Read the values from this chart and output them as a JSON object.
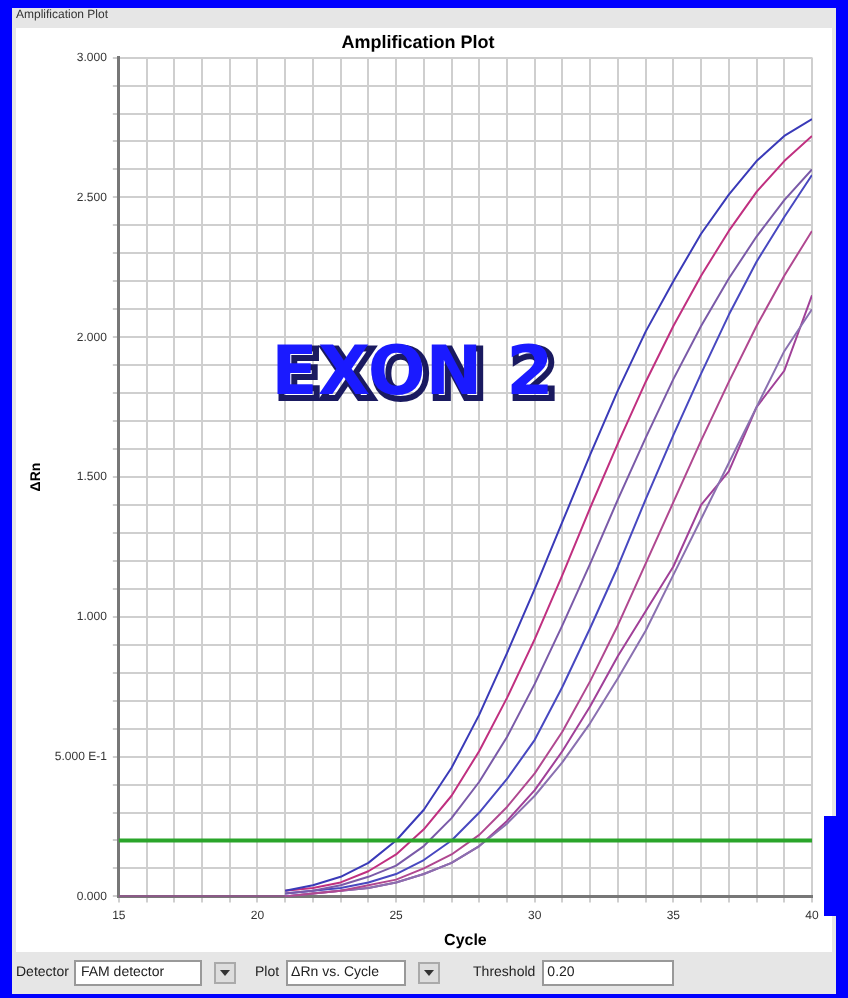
{
  "chart_data": {
    "type": "line",
    "title": "Amplification Plot",
    "xlabel": "Cycle",
    "ylabel": "ΔRn",
    "annotations": [
      "EXON 2",
      "Amplification Plot",
      "Detector",
      "FAM detector",
      "Plot",
      "ΔRn vs. Cycle",
      "Threshold",
      "0.20"
    ],
    "x": [
      15,
      16,
      17,
      18,
      19,
      20,
      21,
      22,
      23,
      24,
      25,
      26,
      27,
      28,
      29,
      30,
      31,
      32,
      33,
      34,
      35,
      36,
      37,
      38,
      39,
      40
    ],
    "series": [
      {
        "color": "#3a3ab8",
        "values": [
          null,
          null,
          null,
          null,
          null,
          null,
          0.02,
          0.04,
          0.07,
          0.12,
          0.2,
          0.31,
          0.46,
          0.65,
          0.87,
          1.1,
          1.34,
          1.58,
          1.81,
          2.02,
          2.2,
          2.37,
          2.51,
          2.63,
          2.72,
          2.78
        ]
      },
      {
        "color": "#c03080",
        "values": [
          null,
          null,
          null,
          null,
          null,
          null,
          0.02,
          0.03,
          0.05,
          0.09,
          0.15,
          0.24,
          0.36,
          0.52,
          0.71,
          0.92,
          1.15,
          1.39,
          1.62,
          1.84,
          2.04,
          2.22,
          2.38,
          2.52,
          2.63,
          2.72
        ]
      },
      {
        "color": "#7a5aa8",
        "values": [
          null,
          null,
          null,
          null,
          null,
          null,
          0.01,
          0.02,
          0.04,
          0.07,
          0.11,
          0.18,
          0.28,
          0.41,
          0.57,
          0.76,
          0.97,
          1.19,
          1.42,
          1.64,
          1.85,
          2.04,
          2.21,
          2.36,
          2.49,
          2.6
        ]
      },
      {
        "color": "#4848c0",
        "values": [
          null,
          null,
          null,
          null,
          null,
          null,
          0.01,
          0.02,
          0.03,
          0.05,
          0.08,
          0.13,
          0.2,
          0.3,
          0.42,
          0.56,
          0.75,
          0.96,
          1.18,
          1.42,
          1.65,
          1.87,
          2.08,
          2.27,
          2.43,
          2.58
        ]
      },
      {
        "color": "#b04890",
        "values": [
          null,
          null,
          null,
          null,
          null,
          null,
          0,
          0.01,
          0.02,
          0.04,
          0.06,
          0.1,
          0.15,
          0.22,
          0.32,
          0.44,
          0.59,
          0.77,
          0.97,
          1.19,
          1.41,
          1.63,
          1.84,
          2.04,
          2.22,
          2.38
        ]
      },
      {
        "color": "#8a70b0",
        "values": [
          null,
          null,
          null,
          null,
          null,
          null,
          0,
          0.01,
          0.02,
          0.03,
          0.05,
          0.08,
          0.12,
          0.18,
          0.26,
          0.36,
          0.48,
          0.62,
          0.78,
          0.95,
          1.15,
          1.35,
          1.55,
          1.75,
          1.95,
          2.1
        ]
      },
      {
        "color": "#a04098",
        "values": [
          0,
          0,
          0,
          0,
          0,
          0,
          0,
          0.01,
          0.02,
          0.03,
          0.05,
          0.08,
          0.12,
          0.18,
          0.27,
          0.38,
          0.52,
          0.68,
          0.86,
          1.02,
          1.18,
          1.4,
          1.52,
          1.75,
          1.88,
          2.15
        ]
      }
    ],
    "xlim": [
      15,
      40
    ],
    "xticks": [
      15,
      {
        "value": 16,
        "label": null
      },
      {
        "value": 17,
        "label": null
      },
      {
        "value": 18,
        "label": null
      },
      {
        "value": 19,
        "label": null
      },
      20,
      {
        "value": 21,
        "label": null
      },
      {
        "value": 22,
        "label": null
      },
      {
        "value": 23,
        "label": null
      },
      {
        "value": 24,
        "label": null
      },
      25,
      {
        "value": 26,
        "label": null
      },
      {
        "value": 27,
        "label": null
      },
      {
        "value": 28,
        "label": null
      },
      {
        "value": 29,
        "label": null
      },
      30,
      {
        "value": 31,
        "label": null
      },
      {
        "value": 32,
        "label": null
      },
      {
        "value": 33,
        "label": null
      },
      {
        "value": 34,
        "label": null
      },
      35,
      {
        "value": 36,
        "label": null
      },
      {
        "value": 37,
        "label": null
      },
      {
        "value": 38,
        "label": null
      },
      {
        "value": 39,
        "label": null
      },
      40
    ],
    "ylim": [
      0,
      3
    ],
    "yticks": [
      {
        "value": 0,
        "label": "0.000"
      },
      {
        "value": 0.1,
        "label": null
      },
      {
        "value": 0.2,
        "label": null
      },
      {
        "value": 0.3,
        "label": null
      },
      {
        "value": 0.4,
        "label": null
      },
      {
        "value": 0.5,
        "label": "5.000 E-1"
      },
      {
        "value": 0.6,
        "label": null
      },
      {
        "value": 0.7,
        "label": null
      },
      {
        "value": 0.8,
        "label": null
      },
      {
        "value": 0.9,
        "label": null
      },
      {
        "value": 1,
        "label": "1.000"
      },
      {
        "value": 1.1,
        "label": null
      },
      {
        "value": 1.2,
        "label": null
      },
      {
        "value": 1.3,
        "label": null
      },
      {
        "value": 1.4,
        "label": null
      },
      {
        "value": 1.5,
        "label": "1.500"
      },
      {
        "value": 1.6,
        "label": null
      },
      {
        "value": 1.7,
        "label": null
      },
      {
        "value": 1.8,
        "label": null
      },
      {
        "value": 1.9,
        "label": null
      },
      {
        "value": 2,
        "label": "2.000"
      },
      {
        "value": 2.1,
        "label": null
      },
      {
        "value": 2.2,
        "label": null
      },
      {
        "value": 2.3,
        "label": null
      },
      {
        "value": 2.4,
        "label": null
      },
      {
        "value": 2.5,
        "label": "2.500"
      },
      {
        "value": 2.6,
        "label": null
      },
      {
        "value": 2.7,
        "label": null
      },
      {
        "value": 2.8,
        "label": null
      },
      {
        "value": 2.9,
        "label": null
      },
      {
        "value": 3,
        "label": "3.000"
      }
    ],
    "grid": true,
    "legend": false,
    "marker": "none",
    "line_style": "solid",
    "ref_lines": [
      {
        "axis": "y",
        "value": 0.2,
        "color": "#2aa52a"
      }
    ]
  }
}
